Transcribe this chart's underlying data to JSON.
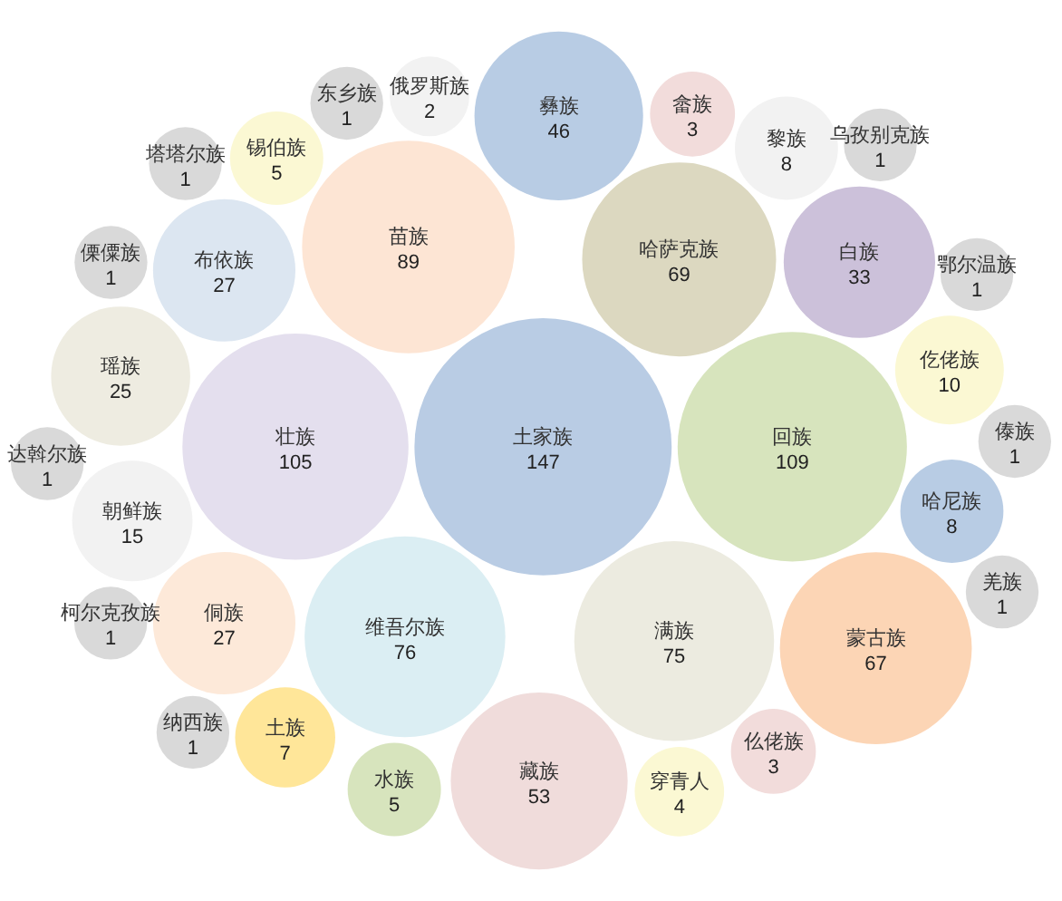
{
  "chart_data": {
    "type": "other",
    "data_labels": true,
    "categories": [
      "土家族",
      "回族",
      "壮族",
      "苗族",
      "维吾尔族",
      "满族",
      "哈萨克族",
      "蒙古族",
      "藏族",
      "彝族",
      "白族",
      "侗族",
      "布依族",
      "瑶族",
      "朝鲜族",
      "仡佬族",
      "哈尼族",
      "黎族",
      "土族",
      "锡伯族",
      "水族",
      "穿青人",
      "畲族",
      "仫佬族",
      "俄罗斯族",
      "东乡族",
      "傣族",
      "鄂尔温族",
      "柯尔克孜族",
      "傈僳族",
      "纳西族",
      "羌族",
      "塔塔尔族",
      "乌孜别克族",
      "达斡尔族"
    ],
    "values": [
      147,
      109,
      105,
      89,
      76,
      75,
      69,
      67,
      53,
      46,
      33,
      27,
      27,
      25,
      15,
      10,
      8,
      8,
      7,
      5,
      5,
      4,
      3,
      3,
      2,
      1,
      1,
      1,
      1,
      1,
      1,
      1,
      1,
      1,
      1
    ],
    "colors": [
      "#b9cce4",
      "#d7e4bd",
      "#e4dfee",
      "#fde5d4",
      "#dbeef3",
      "#ecebe0",
      "#dcd8c0",
      "#fcd5b5",
      "#f0dcdb",
      "#b8cce4",
      "#ccc1da",
      "#fde9d9",
      "#dce6f1",
      "#eeece1",
      "#f2f2f2",
      "#fbf8d3",
      "#b8cce4",
      "#f2f2f2",
      "#ffe699",
      "#fbf8d3",
      "#d7e4bd",
      "#fbf8d3",
      "#f2dcdb",
      "#f2dcdb",
      "#f2f2f2",
      "#d9d9d9",
      "#d9d9d9",
      "#d9d9d9",
      "#d9d9d9",
      "#d9d9d9",
      "#d9d9d9",
      "#d9d9d9",
      "#d9d9d9",
      "#d9d9d9",
      "#d9d9d9"
    ]
  }
}
